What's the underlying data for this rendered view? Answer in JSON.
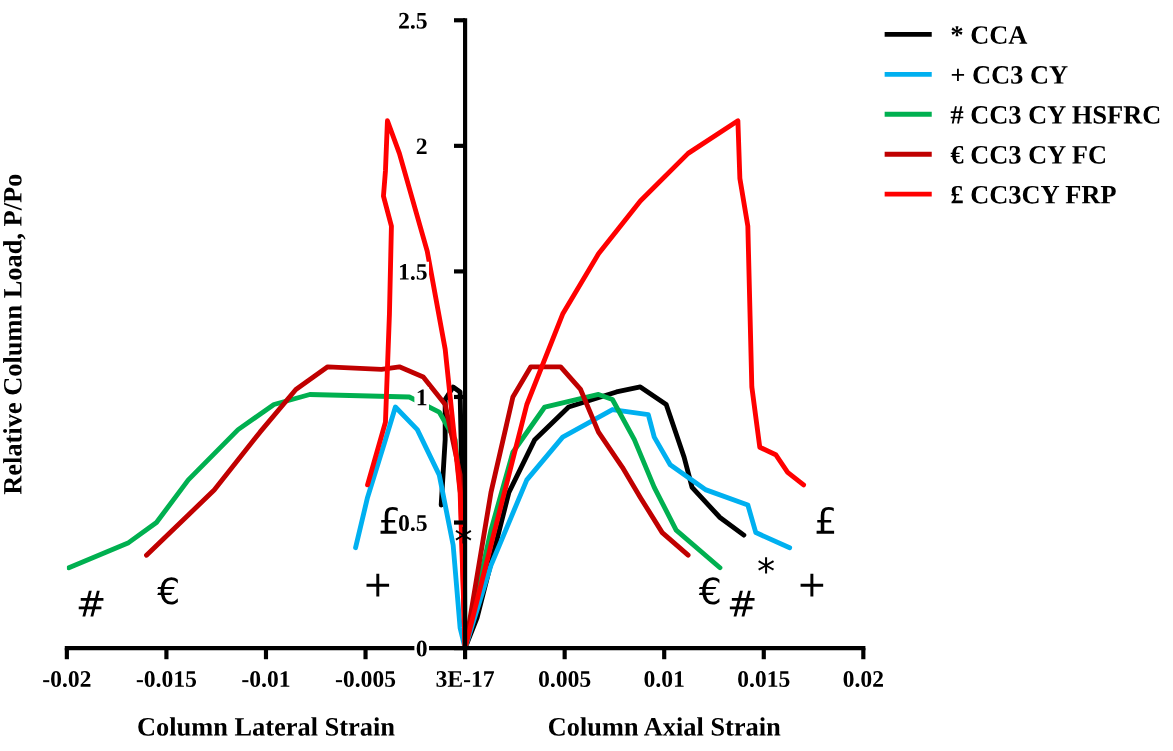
{
  "chart_data": {
    "type": "line",
    "ylabel": "Relative Column Load, P/Po",
    "xlim": [
      -0.02,
      0.02
    ],
    "ylim": [
      0,
      2.5
    ],
    "xticks": [
      -0.02,
      -0.015,
      -0.01,
      -0.005,
      {
        "value": 0,
        "label": "3E-17"
      },
      0.005,
      0.01,
      0.015,
      0.02
    ],
    "yticks": [
      0,
      0.5,
      1,
      1.5,
      2,
      2.5
    ],
    "grid": false,
    "legend": "top right",
    "annotations": [
      "Column Lateral Strain",
      "Column Axial Strain",
      {
        "text": "#",
        "x": -0.0199,
        "y": 0.32
      },
      {
        "text": "€",
        "x": -0.016,
        "y": 0.37
      },
      {
        "text": "+",
        "x": -0.0055,
        "y": 0.4
      },
      {
        "text": "£",
        "x": -0.0049,
        "y": 0.65
      },
      {
        "text": "*",
        "x": -0.0012,
        "y": 0.57
      },
      {
        "text": "€",
        "x": 0.0112,
        "y": 0.37
      },
      {
        "text": "#",
        "x": 0.0128,
        "y": 0.32
      },
      {
        "text": "*",
        "x": 0.014,
        "y": 0.45
      },
      {
        "text": "+",
        "x": 0.0163,
        "y": 0.4
      },
      {
        "text": "£",
        "x": 0.017,
        "y": 0.65
      }
    ],
    "series": [
      {
        "name": "* CCA",
        "color": "#000000",
        "x": [
          -0.0012,
          -0.001,
          -0.001,
          -0.0006,
          -0.00025,
          -0.00015,
          0,
          0.0006,
          0.0022,
          0.0035,
          0.0052,
          0.0076,
          0.0088,
          0.0101,
          0.011,
          0.0114,
          0.0128,
          0.014
        ],
        "values": [
          0.57,
          0.83,
          0.99,
          1.04,
          1.02,
          0.62,
          0,
          0.12,
          0.62,
          0.83,
          0.96,
          1.02,
          1.04,
          0.97,
          0.76,
          0.64,
          0.52,
          0.45
        ]
      },
      {
        "name": "+ CC3 CY",
        "color": "#00b0f0",
        "x": [
          -0.0055,
          -0.0049,
          -0.004,
          -0.0035,
          -0.0024,
          -0.0013,
          -0.0006,
          -0.00025,
          0,
          0.0013,
          0.0031,
          0.0049,
          0.0074,
          0.0092,
          0.0095,
          0.0103,
          0.0121,
          0.0142,
          0.0146,
          0.0163
        ],
        "values": [
          0.4,
          0.6,
          0.83,
          0.96,
          0.87,
          0.69,
          0.41,
          0.08,
          0,
          0.33,
          0.67,
          0.84,
          0.95,
          0.93,
          0.84,
          0.73,
          0.63,
          0.57,
          0.46,
          0.4
        ]
      },
      {
        "name": "# CC3 CY HSFRC",
        "color": "#00b050",
        "x": [
          -0.0199,
          -0.0169,
          -0.0155,
          -0.0139,
          -0.0114,
          -0.0096,
          -0.0078,
          -0.0028,
          -0.0013,
          -0.0005,
          -5e-05,
          0,
          0.0013,
          0.0024,
          0.004,
          0.0067,
          0.0074,
          0.0085,
          0.0095,
          0.0106,
          0.0128
        ],
        "values": [
          0.32,
          0.42,
          0.5,
          0.67,
          0.87,
          0.97,
          1.01,
          1.0,
          0.94,
          0.83,
          0.47,
          0,
          0.47,
          0.78,
          0.96,
          1.01,
          0.99,
          0.83,
          0.64,
          0.47,
          0.32
        ]
      },
      {
        "name": "€ CC3 CY FC",
        "color": "#c00000",
        "x": [
          -0.016,
          -0.0139,
          -0.0126,
          -0.0103,
          -0.0085,
          -0.0069,
          -0.0042,
          -0.0033,
          -0.0021,
          -0.001,
          -0.00025,
          0,
          0.0013,
          0.0024,
          0.0033,
          0.0048,
          0.0058,
          0.0067,
          0.0079,
          0.0088,
          0.0099,
          0.0112
        ],
        "values": [
          0.37,
          0.53,
          0.63,
          0.86,
          1.03,
          1.12,
          1.11,
          1.12,
          1.08,
          0.97,
          0.69,
          0,
          0.62,
          1.0,
          1.12,
          1.12,
          1.03,
          0.86,
          0.72,
          0.6,
          0.46,
          0.37
        ]
      },
      {
        "name": "£ CC3CY FRP",
        "color": "#ff0000",
        "x": [
          -0.0049,
          -0.004,
          -0.0038,
          -0.0037,
          -0.0041,
          -0.004,
          -0.0039,
          -0.0033,
          -0.0019,
          -0.001,
          -0.00025,
          0,
          0.0013,
          0.0031,
          0.0049,
          0.0067,
          0.0088,
          0.0112,
          0.0137,
          0.0138,
          0.0142,
          0.0144,
          0.0148,
          0.0156,
          0.0162,
          0.017
        ],
        "values": [
          0.65,
          0.9,
          1.33,
          1.68,
          1.8,
          1.9,
          2.1,
          1.97,
          1.58,
          1.19,
          0.62,
          0,
          0.41,
          0.97,
          1.33,
          1.57,
          1.78,
          1.97,
          2.1,
          1.87,
          1.68,
          1.04,
          0.8,
          0.77,
          0.7,
          0.65
        ]
      }
    ]
  }
}
